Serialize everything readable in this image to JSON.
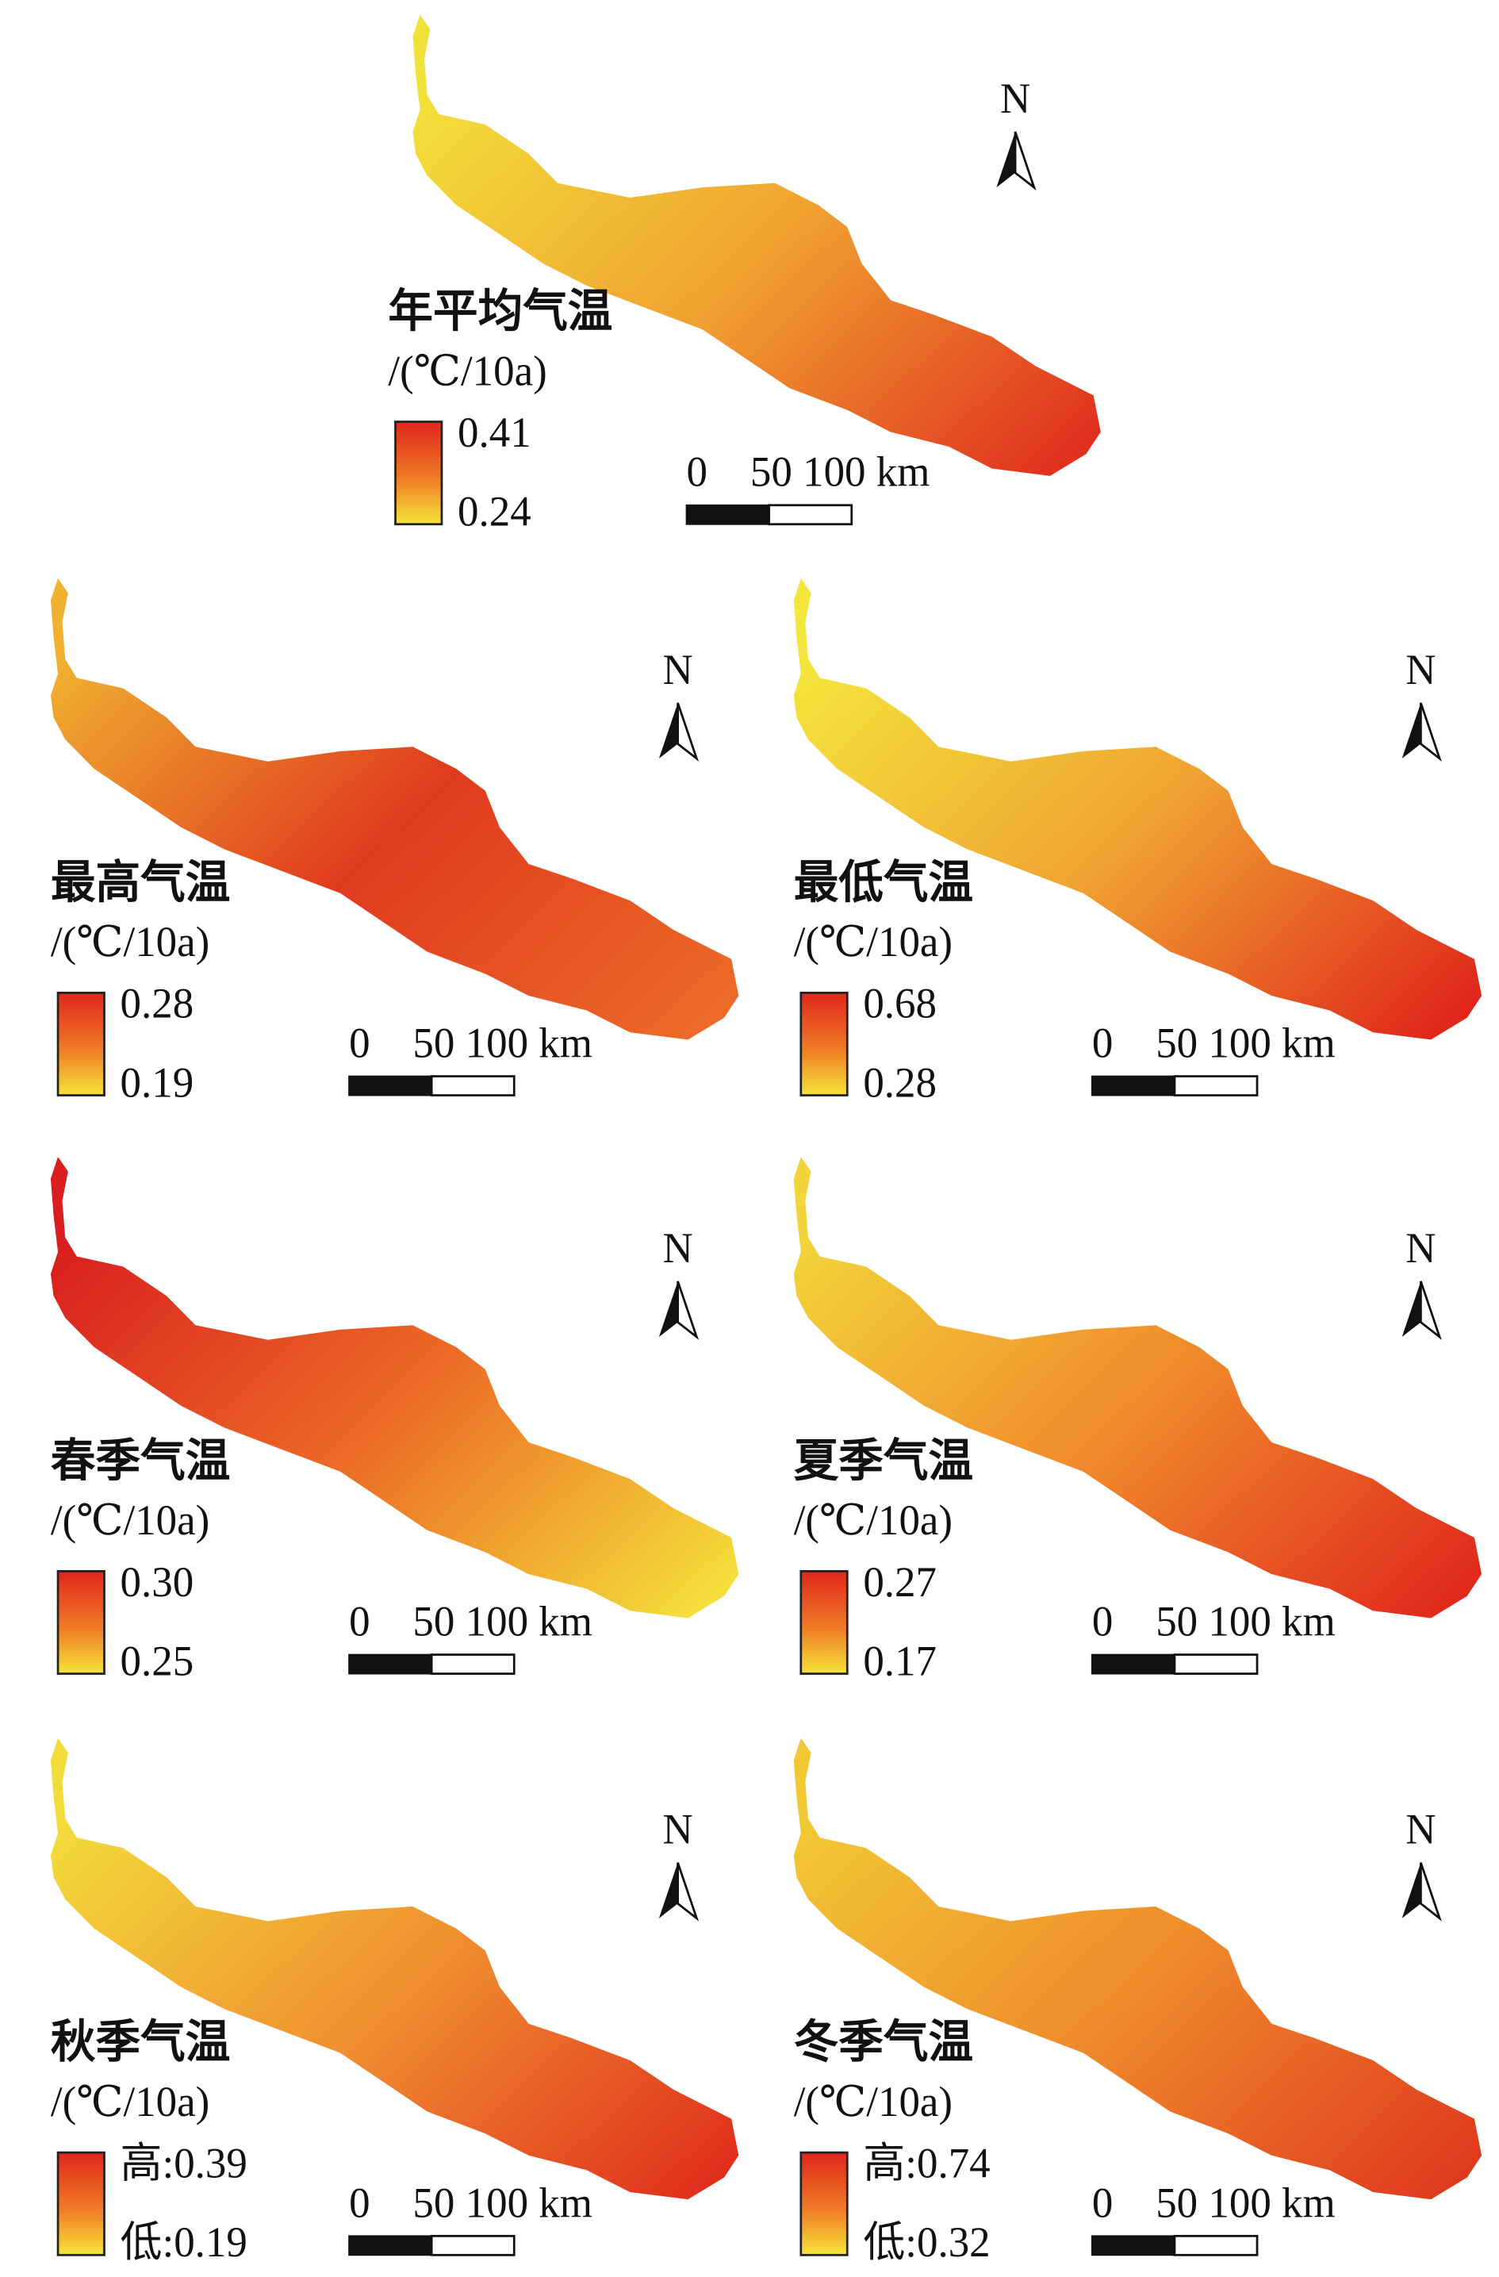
{
  "panels": [
    {
      "title": "年平均气温",
      "unit": "/(℃/10a)",
      "legend_high": "0.41",
      "legend_low": "0.24",
      "scale_start": "0",
      "scale_end": "50 100 km",
      "north": "N"
    },
    {
      "title": "最高气温",
      "unit": "/(℃/10a)",
      "legend_high": "0.28",
      "legend_low": "0.19",
      "scale_start": "0",
      "scale_end": "50 100 km",
      "north": "N"
    },
    {
      "title": "最低气温",
      "unit": "/(℃/10a)",
      "legend_high": "0.68",
      "legend_low": "0.28",
      "scale_start": "0",
      "scale_end": "50 100 km",
      "north": "N"
    },
    {
      "title": "春季气温",
      "unit": "/(℃/10a)",
      "legend_high": "0.30",
      "legend_low": "0.25",
      "scale_start": "0",
      "scale_end": "50 100 km",
      "north": "N"
    },
    {
      "title": "夏季气温",
      "unit": "/(℃/10a)",
      "legend_high": "0.27",
      "legend_low": "0.17",
      "scale_start": "0",
      "scale_end": "50 100 km",
      "north": "N"
    },
    {
      "title": "秋季气温",
      "unit": "/(℃/10a)",
      "legend_high": "高:0.39",
      "legend_low": "低:0.19",
      "scale_start": "0",
      "scale_end": "50 100 km",
      "north": "N"
    },
    {
      "title": "冬季气温",
      "unit": "/(℃/10a)",
      "legend_high": "高:0.74",
      "legend_low": "低:0.32",
      "scale_start": "0",
      "scale_end": "50 100 km",
      "north": "N"
    }
  ]
}
